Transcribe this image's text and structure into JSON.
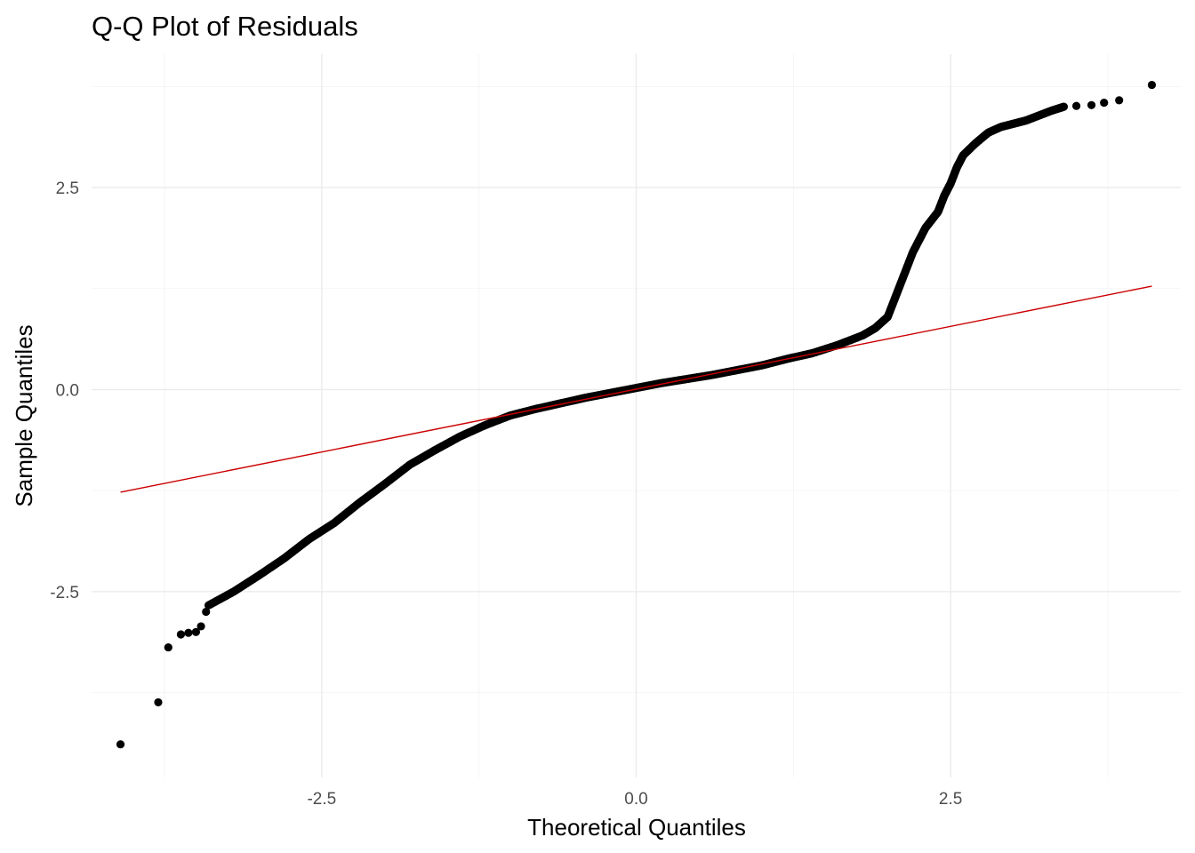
{
  "chart_data": {
    "type": "scatter",
    "title": "Q-Q Plot of Residuals",
    "xlabel": "Theoretical Quantiles",
    "ylabel": "Sample Quantiles",
    "xlim": [
      -4.33,
      4.33
    ],
    "ylim": [
      -4.8,
      4.15
    ],
    "x_ticks": [
      -2.5,
      0.0,
      2.5
    ],
    "x_tick_labels": [
      "-2.5",
      "0.0",
      "2.5"
    ],
    "y_ticks": [
      -2.5,
      0.0,
      2.5
    ],
    "y_tick_labels": [
      "-2.5",
      "0.0",
      "2.5"
    ],
    "grid": true,
    "legend": "none",
    "point_color": "#000000",
    "line_color": "#cc0000",
    "reference_line": {
      "x": [
        -4.1,
        4.1
      ],
      "y": [
        -1.27,
        1.28
      ]
    },
    "outlier_points": {
      "x": [
        -4.1,
        -3.8,
        -3.72,
        -3.62,
        -3.56,
        -3.5,
        -3.46,
        -3.42,
        3.5,
        3.62,
        3.72,
        3.84,
        4.1
      ],
      "y": [
        -4.39,
        -3.87,
        -3.19,
        -3.03,
        -3.01,
        -3.0,
        -2.93,
        -2.75,
        3.51,
        3.52,
        3.55,
        3.58,
        3.77
      ]
    },
    "quantile_curve": {
      "x": [
        -3.4,
        -3.2,
        -3.0,
        -2.8,
        -2.6,
        -2.4,
        -2.2,
        -2.0,
        -1.8,
        -1.6,
        -1.4,
        -1.2,
        -1.0,
        -0.8,
        -0.6,
        -0.4,
        -0.2,
        0.0,
        0.2,
        0.4,
        0.6,
        0.8,
        1.0,
        1.2,
        1.4,
        1.6,
        1.8,
        1.9,
        2.0,
        2.1,
        2.2,
        2.3,
        2.4,
        2.45,
        2.5,
        2.55,
        2.6,
        2.7,
        2.8,
        2.9,
        3.0,
        3.1,
        3.2,
        3.3,
        3.4
      ],
      "y": [
        -2.67,
        -2.5,
        -2.3,
        -2.09,
        -1.85,
        -1.65,
        -1.4,
        -1.17,
        -0.93,
        -0.75,
        -0.58,
        -0.44,
        -0.32,
        -0.24,
        -0.17,
        -0.1,
        -0.04,
        0.02,
        0.08,
        0.13,
        0.18,
        0.24,
        0.3,
        0.38,
        0.45,
        0.55,
        0.67,
        0.76,
        0.9,
        1.3,
        1.7,
        2.0,
        2.2,
        2.4,
        2.55,
        2.75,
        2.9,
        3.05,
        3.18,
        3.25,
        3.29,
        3.33,
        3.39,
        3.45,
        3.5
      ]
    }
  }
}
